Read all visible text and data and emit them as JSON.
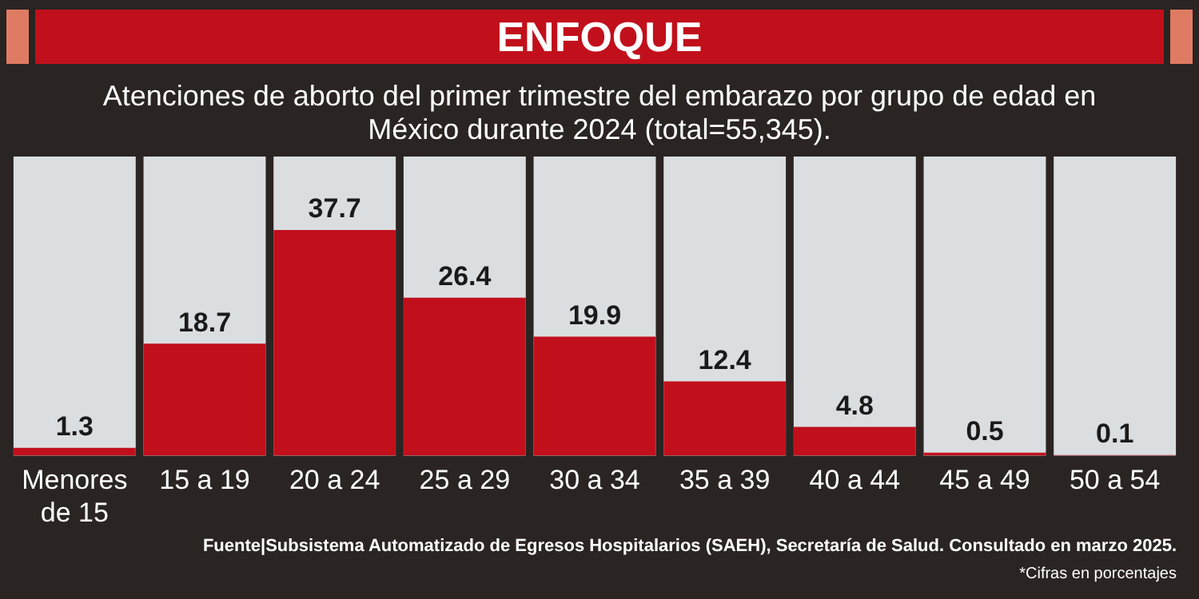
{
  "chart_data": {
    "type": "bar",
    "title": "ENFOQUE",
    "subtitle": "Atenciones de aborto del primer trimestre del embarazo por grupo de edad en México durante 2024 (total=55,345).",
    "categories": [
      "Menores de 15",
      "15 a 19",
      "20 a 24",
      "25 a 29",
      "30 a 34",
      "35 a 39",
      "40 a 44",
      "45 a 49",
      "50 a 54"
    ],
    "values": [
      1.3,
      18.7,
      37.7,
      26.4,
      19.9,
      12.4,
      4.8,
      0.5,
      0.1
    ],
    "color": "#c1101c",
    "data_labels": true,
    "legend": false,
    "annotations": [
      "Fuente|Subsistema Automatizado de Egresos Hospitalarios (SAEH), Secretaría de Salud. Consultado en marzo 2025.",
      "*Cifras en porcentajes"
    ]
  }
}
